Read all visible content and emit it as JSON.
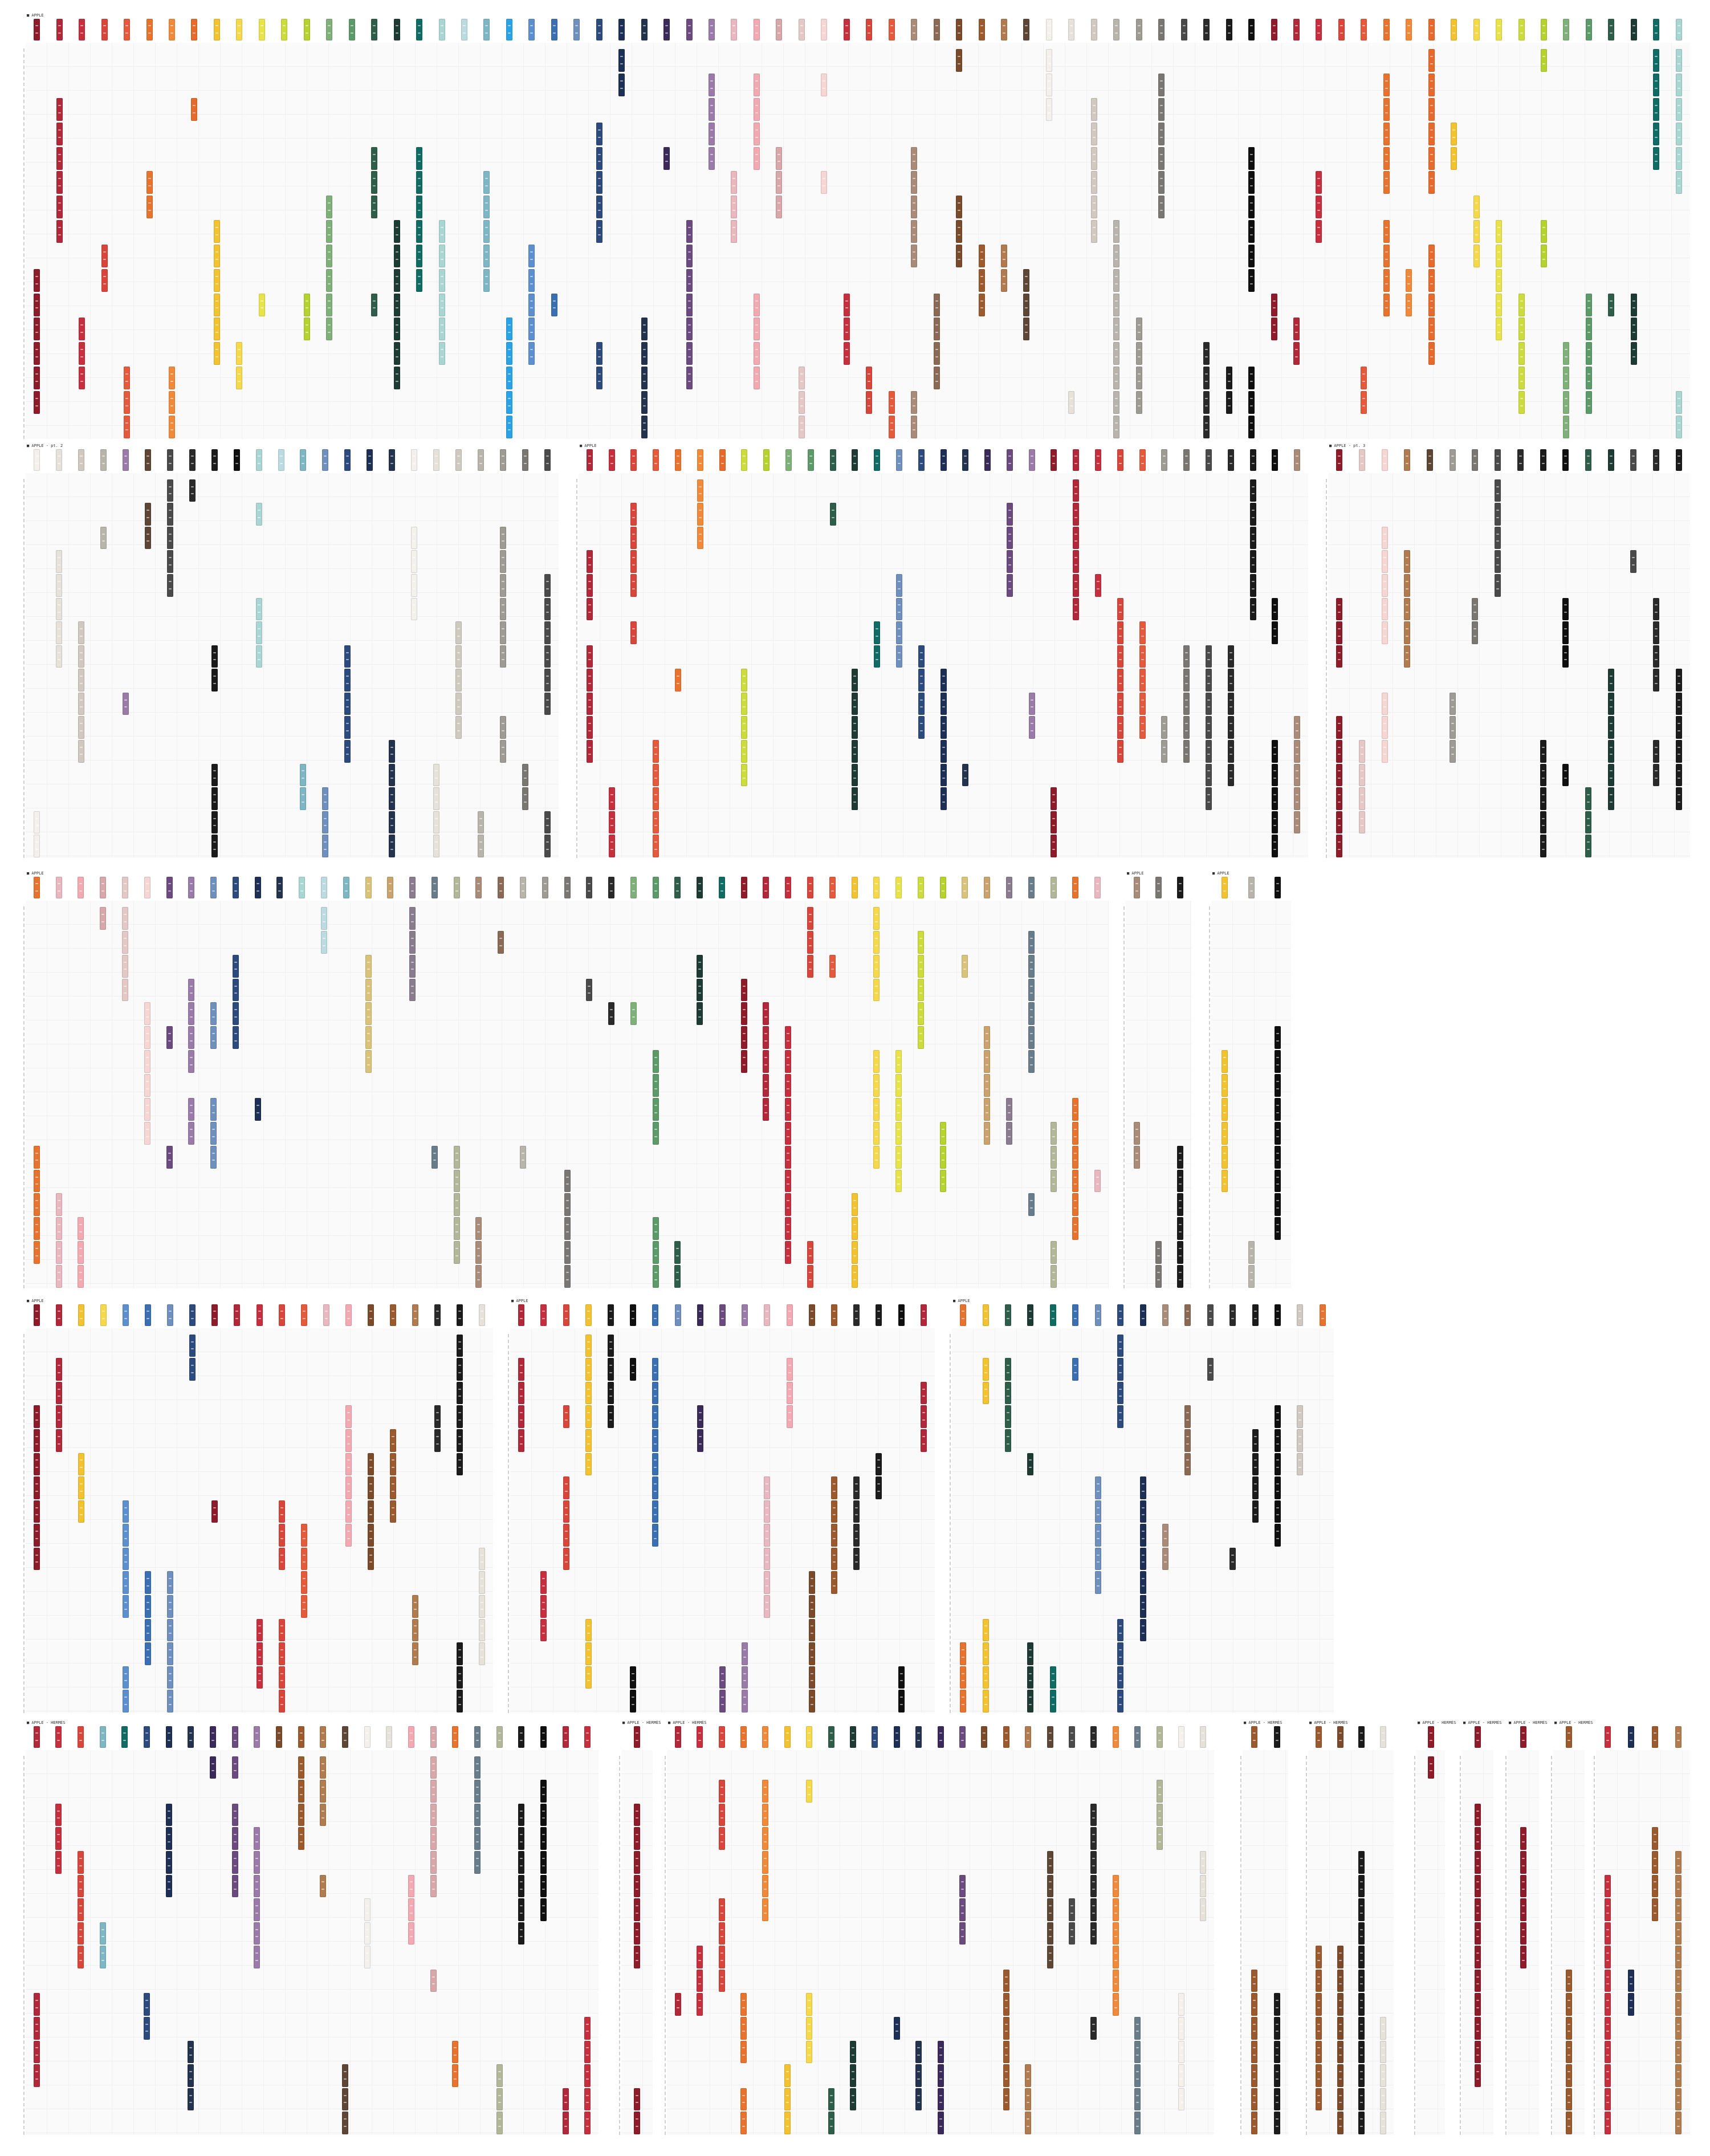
{
  "labels": {
    "p1": "■ APPLE",
    "p2": "■ APPLE - pt. 2",
    "p3": "■ APPLE",
    "p4": "■ APPLE - pt. 3",
    "p5": "■ APPLE",
    "p6": "■ APPLE",
    "p7": "■ APPLE",
    "p8": "■ APPLE",
    "p9": "■ APPLE",
    "p10": "■ APPLE",
    "p11": "■ APPLE - HERMÈS",
    "p12": "■ APPLE - HERMÈS",
    "p13": "■ APPLE - HERMÈS",
    "p14": "■ APPLE - HERMÈS",
    "p15": "■ APPLE - HERMÈS",
    "p16": "■ APPLE - HERMÈS",
    "p17": "■ APPLE - HERMÈS",
    "p18": "■ APPLE - HERMÈS",
    "p19": "■ APPLE - HERMÈS"
  },
  "palette": {
    "reds": [
      "#8e1b2a",
      "#b0283a",
      "#c52f3e",
      "#d8453b",
      "#e55a3c"
    ],
    "oranges": [
      "#e8732e",
      "#f08a3a",
      "#e66a2c"
    ],
    "yellows": [
      "#f2c230",
      "#f5d94a",
      "#e9e34b",
      "#cbdc3c",
      "#b5d22f"
    ],
    "greens": [
      "#7fb07a",
      "#5d9a6a",
      "#2e5e4a",
      "#1e3b33",
      "#0f6b63"
    ],
    "teals": [
      "#a9d6d3",
      "#bcdbe1",
      "#7fb6c4"
    ],
    "blues": [
      "#2aa3e6",
      "#5d8fcf",
      "#3a6fb1",
      "#6f8fbd",
      "#2d4a7c",
      "#1d2f55",
      "#23324d"
    ],
    "purples": [
      "#3a2a5a",
      "#6b4b7f",
      "#9a7aa8"
    ],
    "pinks": [
      "#e9b7bf",
      "#f2a9b2",
      "#d7a7aa",
      "#e3c8c6",
      "#f6d6d4"
    ],
    "browns": [
      "#a88b78",
      "#8b6a55",
      "#7a4a2a",
      "#9a5a2e",
      "#b07b4f",
      "#5e4636"
    ],
    "neutrals": [
      "#f4f1ec",
      "#e6e2db",
      "#cfc9bf",
      "#b9b4ab",
      "#9e9a94",
      "#7a7772",
      "#4a4a4a",
      "#2a2a2a",
      "#1b1b1b",
      "#0f0f0f"
    ],
    "multi": [
      "#d9c27a",
      "#c9a36b",
      "#8a7b8f",
      "#687c8a",
      "#b2b79a"
    ]
  }
}
